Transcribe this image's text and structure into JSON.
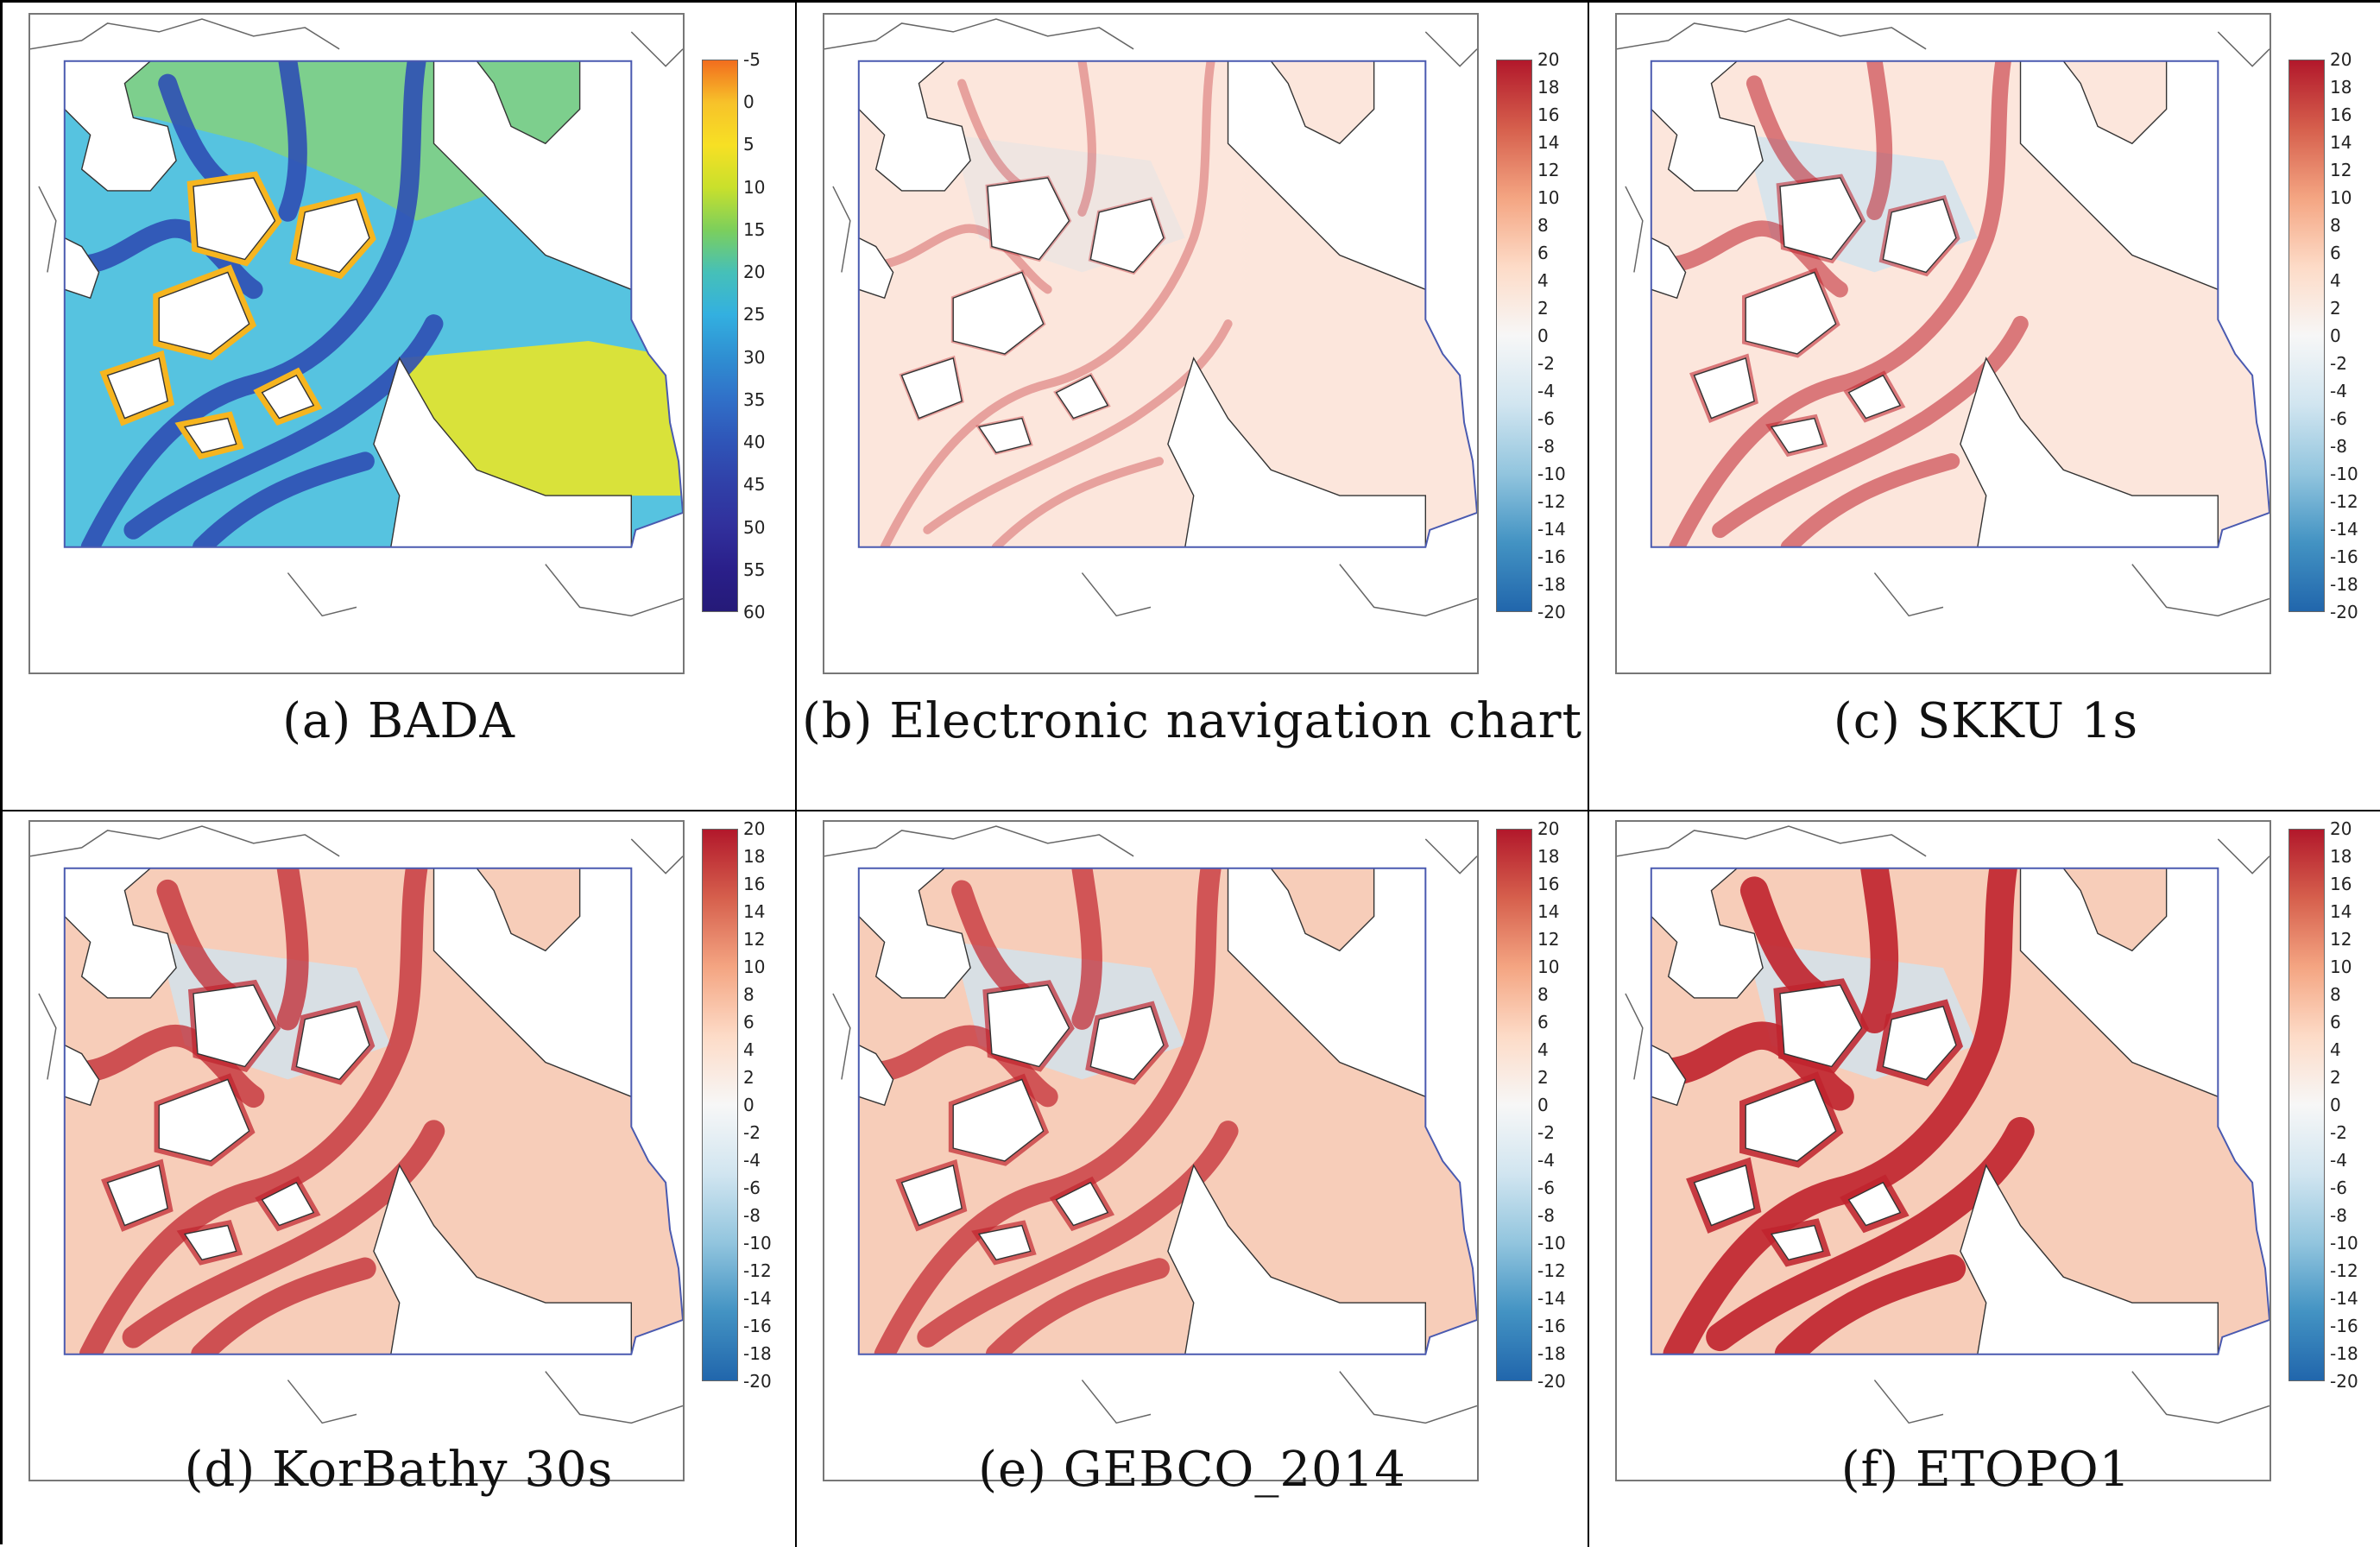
{
  "panels": [
    {
      "id": "a",
      "caption": "(a)  BADA",
      "colorbar": {
        "ticks": [
          "-5",
          "0",
          "5",
          "10",
          "15",
          "20",
          "25",
          "30",
          "35",
          "40",
          "45",
          "50",
          "55",
          "60"
        ],
        "colors": [
          "#f26d1e",
          "#f7c22a",
          "#f7e024",
          "#c9e02c",
          "#7ccf5c",
          "#46c0b8",
          "#33b0e0",
          "#2f8fd2",
          "#3070c8",
          "#2f55b8",
          "#3040a8",
          "#31309c",
          "#2a1f8a",
          "#251a78"
        ]
      },
      "style": "depth"
    },
    {
      "id": "b",
      "caption": "(b)  Electronic  navigation  chart",
      "colorbar": {
        "ticks": [
          "20",
          "18",
          "16",
          "14",
          "12",
          "10",
          "8",
          "6",
          "4",
          "2",
          "0",
          "-2",
          "-4",
          "-6",
          "-8",
          "-10",
          "-12",
          "-14",
          "-16",
          "-18",
          "-20"
        ],
        "colors": [
          "#b2182b",
          "#d6604d",
          "#f4a582",
          "#fddbc7",
          "#f7f7f7",
          "#d1e5f0",
          "#92c5de",
          "#4393c3",
          "#2166ac"
        ]
      },
      "style": "diff",
      "intensity": 0.15
    },
    {
      "id": "c",
      "caption": "(c)  SKKU  1s",
      "colorbar": {
        "ticks": [
          "20",
          "18",
          "16",
          "14",
          "12",
          "10",
          "8",
          "6",
          "4",
          "2",
          "0",
          "-2",
          "-4",
          "-6",
          "-8",
          "-10",
          "-12",
          "-14",
          "-16",
          "-18",
          "-20"
        ],
        "colors": [
          "#b2182b",
          "#d6604d",
          "#f4a582",
          "#fddbc7",
          "#f7f7f7",
          "#d1e5f0",
          "#92c5de",
          "#4393c3",
          "#2166ac"
        ]
      },
      "style": "diff",
      "intensity": 0.45
    },
    {
      "id": "d",
      "caption": "(d)  KorBathy  30s",
      "colorbar": {
        "ticks": [
          "20",
          "18",
          "16",
          "14",
          "12",
          "10",
          "8",
          "6",
          "4",
          "2",
          "0",
          "-2",
          "-4",
          "-6",
          "-8",
          "-10",
          "-12",
          "-14",
          "-16",
          "-18",
          "-20"
        ],
        "colors": [
          "#b2182b",
          "#d6604d",
          "#f4a582",
          "#fddbc7",
          "#f7f7f7",
          "#d1e5f0",
          "#92c5de",
          "#4393c3",
          "#2166ac"
        ]
      },
      "style": "diff",
      "intensity": 0.7
    },
    {
      "id": "e",
      "caption": "(e)  GEBCO_2014",
      "colorbar": {
        "ticks": [
          "20",
          "18",
          "16",
          "14",
          "12",
          "10",
          "8",
          "6",
          "4",
          "2",
          "0",
          "-2",
          "-4",
          "-6",
          "-8",
          "-10",
          "-12",
          "-14",
          "-16",
          "-18",
          "-20"
        ],
        "colors": [
          "#b2182b",
          "#d6604d",
          "#f4a582",
          "#fddbc7",
          "#f7f7f7",
          "#d1e5f0",
          "#92c5de",
          "#4393c3",
          "#2166ac"
        ]
      },
      "style": "diff",
      "intensity": 0.65
    },
    {
      "id": "f",
      "caption": "(f)  ETOPO1",
      "colorbar": {
        "ticks": [
          "20",
          "18",
          "16",
          "14",
          "12",
          "10",
          "8",
          "6",
          "4",
          "2",
          "0",
          "-2",
          "-4",
          "-6",
          "-8",
          "-10",
          "-12",
          "-14",
          "-16",
          "-18",
          "-20"
        ],
        "colors": [
          "#b2182b",
          "#d6604d",
          "#f4a582",
          "#fddbc7",
          "#f7f7f7",
          "#d1e5f0",
          "#92c5de",
          "#4393c3",
          "#2166ac"
        ]
      },
      "style": "diff",
      "intensity": 0.95
    }
  ]
}
